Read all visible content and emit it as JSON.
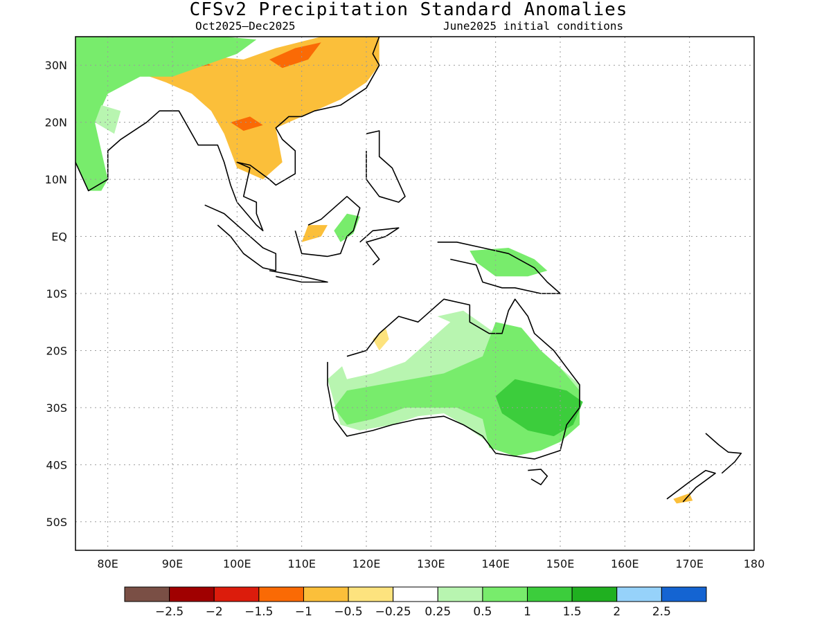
{
  "title": "CFSv2 Precipitation Standard Anomalies",
  "subtitle_left": "Oct2025–Dec2025",
  "subtitle_right": "June2025 initial conditions",
  "map": {
    "lon_min": 75,
    "lon_max": 180,
    "lat_min": -55,
    "lat_max": 35,
    "grid": "dotted",
    "lat_labels": [
      {
        "lat": 30,
        "text": "30N"
      },
      {
        "lat": 20,
        "text": "20N"
      },
      {
        "lat": 10,
        "text": "10N"
      },
      {
        "lat": 0,
        "text": "EQ"
      },
      {
        "lat": -10,
        "text": "10S"
      },
      {
        "lat": -20,
        "text": "20S"
      },
      {
        "lat": -30,
        "text": "30S"
      },
      {
        "lat": -40,
        "text": "40S"
      },
      {
        "lat": -50,
        "text": "50S"
      }
    ],
    "lon_labels": [
      {
        "lon": 80,
        "text": "80E"
      },
      {
        "lon": 90,
        "text": "90E"
      },
      {
        "lon": 100,
        "text": "100E"
      },
      {
        "lon": 110,
        "text": "110E"
      },
      {
        "lon": 120,
        "text": "120E"
      },
      {
        "lon": 130,
        "text": "130E"
      },
      {
        "lon": 140,
        "text": "140E"
      },
      {
        "lon": 150,
        "text": "150E"
      },
      {
        "lon": 160,
        "text": "160E"
      },
      {
        "lon": 170,
        "text": "170E"
      },
      {
        "lon": 180,
        "text": "180"
      }
    ]
  },
  "colorbar": {
    "colors": [
      "#7a4f45",
      "#a00000",
      "#dc1c0c",
      "#fa6a05",
      "#fbbf3a",
      "#fde37e",
      "#ffffff",
      "#b8f5b0",
      "#78ec6c",
      "#3ccd3c",
      "#20b020",
      "#96d2fa",
      "#1464d2"
    ],
    "labels": [
      "−2.5",
      "−2",
      "−1.5",
      "−1",
      "−0.5",
      "−0.25",
      "0.25",
      "0.5",
      "1",
      "1.5",
      "2",
      "2.5"
    ]
  },
  "anomaly_regions": [
    {
      "color": "#fbbf3a",
      "pts": [
        [
          79,
          34
        ],
        [
          86,
          33
        ],
        [
          92,
          32
        ],
        [
          101,
          31
        ],
        [
          106,
          33
        ],
        [
          113,
          35
        ],
        [
          122,
          35
        ],
        [
          122,
          30
        ],
        [
          120,
          27
        ],
        [
          116,
          24
        ],
        [
          110,
          21
        ],
        [
          106,
          19
        ],
        [
          107,
          13
        ],
        [
          104,
          10
        ],
        [
          100,
          12
        ],
        [
          98,
          18
        ],
        [
          96,
          22
        ],
        [
          93,
          25
        ],
        [
          89,
          27
        ],
        [
          84,
          29
        ],
        [
          80,
          30
        ]
      ]
    },
    {
      "color": "#fa6a05",
      "pts": [
        [
          86,
          31
        ],
        [
          90,
          31.5
        ],
        [
          94,
          31
        ],
        [
          96,
          30
        ],
        [
          92,
          29.5
        ],
        [
          87,
          29.8
        ]
      ]
    },
    {
      "color": "#fa6a05",
      "pts": [
        [
          105,
          31
        ],
        [
          109,
          33
        ],
        [
          113,
          34
        ],
        [
          111,
          31
        ],
        [
          107,
          29.5
        ]
      ]
    },
    {
      "color": "#fa6a05",
      "pts": [
        [
          99,
          20
        ],
        [
          102,
          21
        ],
        [
          104,
          19.5
        ],
        [
          101,
          18.5
        ]
      ]
    },
    {
      "color": "#78ec6c",
      "pts": [
        [
          75,
          35
        ],
        [
          83,
          35
        ],
        [
          98,
          35
        ],
        [
          103,
          34.5
        ],
        [
          100,
          32
        ],
        [
          95,
          30
        ],
        [
          90,
          28
        ],
        [
          85,
          28
        ],
        [
          80,
          25
        ],
        [
          78,
          20
        ],
        [
          79,
          15
        ],
        [
          80,
          10
        ],
        [
          79,
          8
        ],
        [
          77,
          8
        ],
        [
          75,
          13
        ]
      ]
    },
    {
      "color": "#b8f5b0",
      "pts": [
        [
          78,
          20
        ],
        [
          81,
          18
        ],
        [
          82,
          22
        ],
        [
          79,
          23
        ]
      ]
    },
    {
      "color": "#78ec6c",
      "pts": [
        [
          116,
          -1
        ],
        [
          118,
          0.5
        ],
        [
          119,
          3.5
        ],
        [
          117,
          4
        ],
        [
          115,
          1
        ]
      ]
    },
    {
      "color": "#fbbf3a",
      "pts": [
        [
          110,
          -1
        ],
        [
          113,
          0
        ],
        [
          114,
          2
        ],
        [
          111,
          2
        ]
      ]
    },
    {
      "color": "#78ec6c",
      "pts": [
        [
          136,
          -2.5
        ],
        [
          142,
          -2
        ],
        [
          146,
          -4
        ],
        [
          148,
          -6
        ],
        [
          145,
          -7
        ],
        [
          140,
          -7
        ],
        [
          137,
          -4.5
        ]
      ]
    },
    {
      "color": "#b8f5b0",
      "pts": [
        [
          117,
          -22
        ],
        [
          121,
          -21
        ],
        [
          126,
          -17
        ],
        [
          131,
          -14
        ],
        [
          135,
          -13
        ],
        [
          140,
          -17
        ],
        [
          144,
          -17
        ],
        [
          146,
          -21
        ],
        [
          150,
          -23
        ],
        [
          153,
          -26
        ],
        [
          153,
          -33
        ],
        [
          151,
          -35
        ],
        [
          147,
          -37
        ],
        [
          143,
          -38
        ],
        [
          140,
          -37
        ],
        [
          135,
          -33
        ],
        [
          132,
          -31
        ],
        [
          128,
          -31.5
        ],
        [
          124,
          -33
        ],
        [
          119,
          -34
        ],
        [
          116,
          -33
        ],
        [
          115,
          -29
        ],
        [
          114,
          -25
        ]
      ]
    },
    {
      "color": "#ffffff",
      "pts": [
        [
          116,
          -22
        ],
        [
          121,
          -20
        ],
        [
          126,
          -16
        ],
        [
          131,
          -14
        ],
        [
          133,
          -15
        ],
        [
          130,
          -18
        ],
        [
          126,
          -22
        ],
        [
          121,
          -24
        ],
        [
          117,
          -25
        ]
      ]
    },
    {
      "color": "#78ec6c",
      "pts": [
        [
          140,
          -15
        ],
        [
          144,
          -16
        ],
        [
          147,
          -20
        ],
        [
          150,
          -23
        ],
        [
          153,
          -27
        ],
        [
          153,
          -33
        ],
        [
          150,
          -36
        ],
        [
          147,
          -37.5
        ],
        [
          143,
          -38.5
        ],
        [
          139,
          -37
        ],
        [
          138,
          -32
        ],
        [
          134,
          -30
        ],
        [
          130,
          -30
        ],
        [
          126,
          -30
        ],
        [
          121,
          -32
        ],
        [
          117,
          -33
        ],
        [
          115,
          -30
        ],
        [
          117,
          -27
        ],
        [
          122,
          -26
        ],
        [
          127,
          -25
        ],
        [
          132,
          -24
        ],
        [
          138,
          -21
        ]
      ]
    },
    {
      "color": "#3ccd3c",
      "pts": [
        [
          143,
          -25
        ],
        [
          147,
          -26
        ],
        [
          151,
          -27
        ],
        [
          153.5,
          -29
        ],
        [
          152,
          -33
        ],
        [
          149,
          -35
        ],
        [
          145,
          -34
        ],
        [
          141,
          -31
        ],
        [
          140,
          -28
        ]
      ]
    },
    {
      "color": "#fde37e",
      "pts": [
        [
          121,
          -18
        ],
        [
          123,
          -16
        ],
        [
          123.5,
          -18
        ],
        [
          122,
          -20
        ]
      ]
    },
    {
      "color": "#fbbf3a",
      "pts": [
        [
          167.5,
          -46
        ],
        [
          170,
          -45
        ],
        [
          170.5,
          -46.3
        ],
        [
          168,
          -46.8
        ]
      ]
    }
  ],
  "coastlines": [
    [
      [
        75,
        13
      ],
      [
        77,
        8
      ],
      [
        80,
        10
      ],
      [
        80,
        15
      ],
      [
        82,
        17
      ],
      [
        86,
        20
      ],
      [
        88,
        22
      ],
      [
        91,
        22
      ],
      [
        92,
        20
      ],
      [
        94,
        16
      ],
      [
        97,
        16
      ],
      [
        98,
        13
      ],
      [
        99,
        9
      ],
      [
        100,
        6
      ],
      [
        103,
        2
      ],
      [
        104,
        1
      ],
      [
        103,
        4
      ],
      [
        103,
        6
      ],
      [
        101,
        7
      ],
      [
        102,
        12
      ],
      [
        100,
        13
      ],
      [
        102,
        12.5
      ],
      [
        105,
        10
      ],
      [
        106,
        9
      ],
      [
        109,
        11
      ],
      [
        109,
        15
      ],
      [
        107,
        17
      ],
      [
        106,
        19
      ],
      [
        108,
        21
      ],
      [
        110,
        21
      ],
      [
        112,
        22
      ],
      [
        116,
        23
      ],
      [
        120,
        26
      ],
      [
        122,
        30
      ],
      [
        121,
        32
      ],
      [
        122,
        35
      ]
    ],
    [
      [
        95,
        5.5
      ],
      [
        98,
        4
      ],
      [
        101,
        1
      ],
      [
        104,
        -2
      ],
      [
        106,
        -3
      ],
      [
        106,
        -6
      ],
      [
        104,
        -5.5
      ],
      [
        101,
        -3
      ],
      [
        99,
        0
      ],
      [
        97,
        2
      ]
    ],
    [
      [
        105,
        -6
      ],
      [
        110,
        -7
      ],
      [
        114,
        -8
      ],
      [
        110,
        -8
      ],
      [
        106,
        -7
      ]
    ],
    [
      [
        109,
        1
      ],
      [
        110,
        -3
      ],
      [
        114,
        -3.5
      ],
      [
        116,
        -3
      ],
      [
        117,
        0
      ],
      [
        118,
        1
      ],
      [
        119,
        5
      ],
      [
        117,
        7
      ],
      [
        115,
        5
      ],
      [
        113,
        3
      ],
      [
        111,
        2
      ]
    ],
    [
      [
        119,
        -1
      ],
      [
        121,
        1
      ],
      [
        125,
        1.5
      ],
      [
        123,
        0
      ],
      [
        120,
        -1
      ],
      [
        122,
        -4
      ],
      [
        121,
        -5
      ]
    ],
    [
      [
        120,
        18
      ],
      [
        122,
        18.5
      ],
      [
        122,
        14
      ],
      [
        124,
        12
      ],
      [
        126,
        7
      ],
      [
        125,
        6
      ],
      [
        122,
        7
      ],
      [
        120,
        10
      ],
      [
        120,
        15
      ]
    ],
    [
      [
        131,
        -1
      ],
      [
        134,
        -1
      ],
      [
        138,
        -2
      ],
      [
        142,
        -3
      ],
      [
        146,
        -5.5
      ],
      [
        148,
        -8
      ],
      [
        150,
        -10
      ],
      [
        147,
        -10
      ],
      [
        143,
        -9
      ],
      [
        141,
        -9
      ],
      [
        138,
        -8
      ],
      [
        137,
        -5
      ],
      [
        133,
        -4
      ]
    ],
    [
      [
        114,
        -22
      ],
      [
        114,
        -26
      ],
      [
        115,
        -32
      ],
      [
        117,
        -35
      ],
      [
        121,
        -34
      ],
      [
        124,
        -33
      ],
      [
        128,
        -32
      ],
      [
        132,
        -31.5
      ],
      [
        135,
        -33
      ],
      [
        138,
        -35
      ],
      [
        140,
        -38
      ],
      [
        143,
        -38.5
      ],
      [
        146,
        -39
      ],
      [
        150,
        -37.5
      ],
      [
        151,
        -33
      ],
      [
        153,
        -30
      ],
      [
        153,
        -26
      ],
      [
        151,
        -23
      ],
      [
        149,
        -20
      ],
      [
        146,
        -17
      ],
      [
        145,
        -14
      ],
      [
        143,
        -11
      ],
      [
        142,
        -13
      ],
      [
        141,
        -17
      ],
      [
        139,
        -17
      ],
      [
        136,
        -15
      ],
      [
        136,
        -12
      ],
      [
        132,
        -11
      ],
      [
        130,
        -13
      ],
      [
        128,
        -15
      ],
      [
        125,
        -14
      ],
      [
        122,
        -17
      ],
      [
        120,
        -20
      ],
      [
        117,
        -21
      ]
    ],
    [
      [
        145,
        -41
      ],
      [
        147,
        -40.8
      ],
      [
        148,
        -42
      ],
      [
        147,
        -43.5
      ],
      [
        145.5,
        -42.5
      ]
    ],
    [
      [
        172.5,
        -34.5
      ],
      [
        174.5,
        -36.5
      ],
      [
        176,
        -37.8
      ],
      [
        178,
        -38
      ],
      [
        177,
        -39.5
      ],
      [
        175,
        -41.5
      ]
    ],
    [
      [
        166.5,
        -46
      ],
      [
        170,
        -43
      ],
      [
        172.5,
        -41
      ],
      [
        174,
        -41.5
      ],
      [
        171,
        -44
      ],
      [
        169,
        -46.5
      ]
    ]
  ]
}
